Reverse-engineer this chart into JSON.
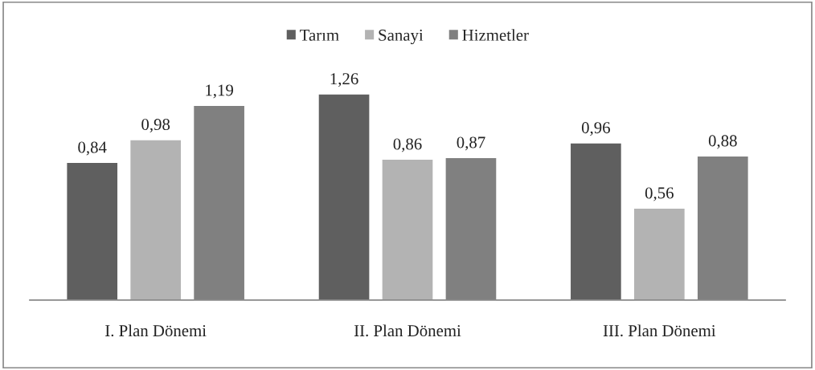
{
  "chart_data": {
    "type": "bar",
    "categories": [
      "I. Plan Dönemi",
      "II. Plan Dönemi",
      "III. Plan Dönemi"
    ],
    "series": [
      {
        "name": "Tarım",
        "color": "#5f5f5f",
        "values": [
          0.84,
          1.26,
          0.96
        ],
        "value_labels": [
          "0,84",
          "1,26",
          "0,96"
        ]
      },
      {
        "name": "Sanayi",
        "color": "#b3b3b3",
        "values": [
          0.98,
          0.86,
          0.56
        ],
        "value_labels": [
          "0,98",
          "0,86",
          "0,56"
        ]
      },
      {
        "name": "Hizmetler",
        "color": "#808080",
        "values": [
          1.19,
          0.87,
          0.88
        ],
        "value_labels": [
          "1,19",
          "0,87",
          "0,88"
        ]
      }
    ],
    "legend": "top",
    "grid": false
  }
}
